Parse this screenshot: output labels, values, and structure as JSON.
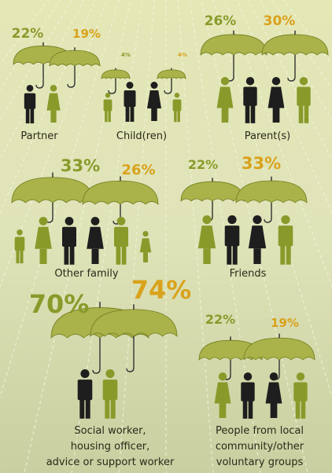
{
  "groups": [
    {
      "label": [
        "Partner"
      ],
      "values": [
        {
          "text": "22%",
          "color": "#8a9a2a"
        },
        {
          "text": "19%",
          "color": "#d9a21b"
        }
      ]
    },
    {
      "label": [
        "Child(ren)"
      ],
      "values": [
        {
          "text": "4%",
          "color": "#8a9a2a"
        },
        {
          "text": "4%",
          "color": "#d9a21b"
        }
      ]
    },
    {
      "label": [
        "Parent(s)"
      ],
      "values": [
        {
          "text": "26%",
          "color": "#8a9a2a"
        },
        {
          "text": "30%",
          "color": "#d9a21b"
        }
      ]
    },
    {
      "label": [
        "Other family"
      ],
      "values": [
        {
          "text": "33%",
          "color": "#8a9a2a"
        },
        {
          "text": "26%",
          "color": "#d9a21b"
        }
      ]
    },
    {
      "label": [
        "Friends"
      ],
      "values": [
        {
          "text": "22%",
          "color": "#8a9a2a"
        },
        {
          "text": "33%",
          "color": "#d9a21b"
        }
      ]
    },
    {
      "label": [
        "Social worker,",
        "housing officer,",
        "advice or support worker"
      ],
      "values": [
        {
          "text": "70%",
          "color": "#8a9a2a"
        },
        {
          "text": "74%",
          "color": "#d9a21b"
        }
      ]
    },
    {
      "label": [
        "People from local",
        "community/other",
        "voluntary groups"
      ],
      "values": [
        {
          "text": "22%",
          "color": "#8a9a2a"
        },
        {
          "text": "19%",
          "color": "#d9a21b"
        }
      ]
    }
  ]
}
